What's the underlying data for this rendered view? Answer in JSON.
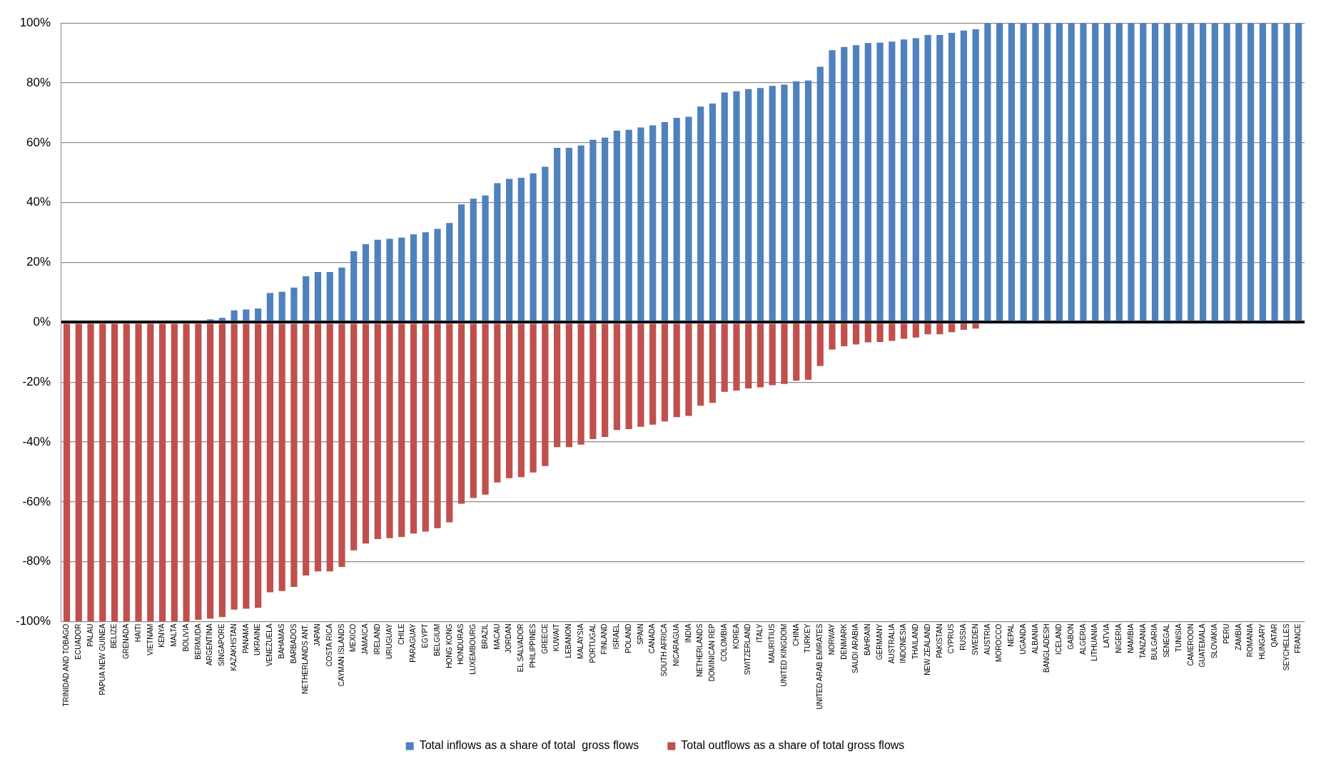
{
  "chart_data": {
    "type": "bar",
    "stacked": true,
    "grid": "y",
    "legend": "bottom",
    "categories": [
      "TRINIDAD AND TOBAGO",
      "ECUADOR",
      "PALAU",
      "PAPUA NEW GUINEA",
      "BELIZE",
      "GRENADA",
      "HAITI",
      "VIETNAM",
      "KENYA",
      "MALTA",
      "BOLIVIA",
      "BERMUDA",
      "ARGENTINA",
      "SINGAPORE",
      "KAZAKHSTAN",
      "PANAMA",
      "UKRAINE",
      "VENEZUELA",
      "BAHAMAS",
      "BARBADOS",
      "NETHERLANDS ANT.",
      "JAPAN",
      "COSTA RICA",
      "CAYMAN ISLANDS",
      "MEXICO",
      "JAMAICA",
      "IRELAND",
      "URUGUAY",
      "CHILE",
      "PARAGUAY",
      "EGYPT",
      "BELGIUM",
      "HONG KONG",
      "HONDURAS",
      "LUXEMBOURG",
      "BRAZIL",
      "MACAU",
      "JORDAN",
      "EL SALVADOR",
      "PHILIPPINES",
      "GREECE",
      "KUWAIT",
      "LEBANON",
      "MALAYSIA",
      "PORTUGAL",
      "FINLAND",
      "ISRAEL",
      "POLAND",
      "SPAIN",
      "CANADA",
      "SOUTH AFRICA",
      "NICARAGUA",
      "INDIA",
      "NETHERLANDS",
      "DOMINICAN REP",
      "COLOMBIA",
      "KOREA",
      "SWITZERLAND",
      "ITALY",
      "MAURITIUS",
      "UNITED KINGDOM",
      "CHINA",
      "TURKEY",
      "UNITED ARAB EMIRATES",
      "NORWAY",
      "DENMARK",
      "SAUDI ARABIA",
      "BAHRAIN",
      "GERMANY",
      "AUSTRALIA",
      "INDONESIA",
      "THAILAND",
      "NEW ZEALAND",
      "PAKISTAN",
      "CYPRUS",
      "RUSSIA",
      "SWEDEN",
      "AUSTRIA",
      "MOROCCO",
      "NEPAL",
      "UGANDA",
      "ALBANIA",
      "BANGLADESH",
      "ICELAND",
      "GABON",
      "ALGERIA",
      "LITHUANIA",
      "LATVIA",
      "NIGERIA",
      "NAMIBIA",
      "TANZANIA",
      "BULGARIA",
      "SENEGAL",
      "TUNISIA",
      "CAMEROON",
      "GUATEMALA",
      "SLOVAKIA",
      "PERU",
      "ZAMBIA",
      "ROMANIA",
      "HUNGARY",
      "QATAR",
      "SEYCHELLES",
      "FRANCE"
    ],
    "series": [
      {
        "name": "Total inflows as a share of total  gross flows",
        "color": "#4f81bd",
        "values": [
          0,
          0,
          0,
          0,
          0,
          0,
          0,
          0,
          0,
          0,
          0,
          null,
          1,
          1.5,
          4,
          4.3,
          4.6,
          9.8,
          10.2,
          11.6,
          15.4,
          16.8,
          16.8,
          18.3,
          23.8,
          26.1,
          27.6,
          27.9,
          28.3,
          29.4,
          30.1,
          31.2,
          33.2,
          39.4,
          41.3,
          42.4,
          46.5,
          47.9,
          48.3,
          49.8,
          52,
          58.3,
          58.3,
          59.1,
          61,
          61.7,
          64,
          64.3,
          65.1,
          65.8,
          66.9,
          68.3,
          68.7,
          72.1,
          73.1,
          76.8,
          77.2,
          77.9,
          78.3,
          79,
          79.4,
          80.5,
          80.8,
          85.4,
          90.9,
          92,
          92.6,
          93.3,
          93.4,
          93.8,
          94.5,
          94.9,
          96,
          96,
          96.7,
          97.5,
          97.9,
          100,
          100,
          100,
          100,
          100,
          100,
          100,
          100,
          100,
          100,
          100,
          100,
          100,
          100,
          100,
          100,
          100,
          100,
          100,
          100,
          100,
          100,
          100,
          100,
          100,
          100,
          100
        ]
      },
      {
        "name": "Total outflows as a share of total gross flows",
        "color": "#c0504d",
        "values": [
          -100,
          -100,
          -100,
          -100,
          -100,
          -100,
          -100,
          -100,
          -100,
          -100,
          -100,
          -99.4,
          -99,
          -98.5,
          -96,
          -95.7,
          -95.4,
          -90.2,
          -89.8,
          -88.4,
          -84.6,
          -83.2,
          -83.2,
          -81.7,
          -76.2,
          -73.9,
          -72.4,
          -72.1,
          -71.7,
          -70.6,
          -69.9,
          -68.8,
          -66.8,
          -60.6,
          -58.7,
          -57.6,
          -53.5,
          -52.1,
          -51.7,
          -50.2,
          -48,
          -41.7,
          -41.7,
          -40.9,
          -39,
          -38.3,
          -36,
          -35.7,
          -34.9,
          -34.2,
          -33.1,
          -31.7,
          -31.3,
          -27.9,
          -26.9,
          -23.2,
          -22.8,
          -22.1,
          -21.7,
          -21,
          -20.6,
          -19.5,
          -19.2,
          -14.6,
          -9.1,
          -8,
          -7.4,
          -6.7,
          -6.6,
          -6.2,
          -5.5,
          -5.1,
          -4,
          -4,
          -3.3,
          -2.5,
          -2.1,
          0,
          0,
          0,
          0,
          0,
          0,
          0,
          0,
          0,
          0,
          0,
          0,
          0,
          0,
          0,
          0,
          0,
          0,
          0,
          0,
          0,
          0,
          0,
          0,
          0,
          0,
          0
        ]
      }
    ],
    "ylim": [
      -100,
      100
    ],
    "yticks": [
      {
        "value": -100,
        "label": "-100%"
      },
      {
        "value": -80,
        "label": "-80%"
      },
      {
        "value": -60,
        "label": "-60%"
      },
      {
        "value": -40,
        "label": "-40%"
      },
      {
        "value": -20,
        "label": "-20%"
      },
      {
        "value": 0,
        "label": "0%"
      },
      {
        "value": 20,
        "label": "20%"
      },
      {
        "value": 40,
        "label": "40%"
      },
      {
        "value": 60,
        "label": "60%"
      },
      {
        "value": 80,
        "label": "80%"
      },
      {
        "value": 100,
        "label": "100%"
      }
    ]
  }
}
